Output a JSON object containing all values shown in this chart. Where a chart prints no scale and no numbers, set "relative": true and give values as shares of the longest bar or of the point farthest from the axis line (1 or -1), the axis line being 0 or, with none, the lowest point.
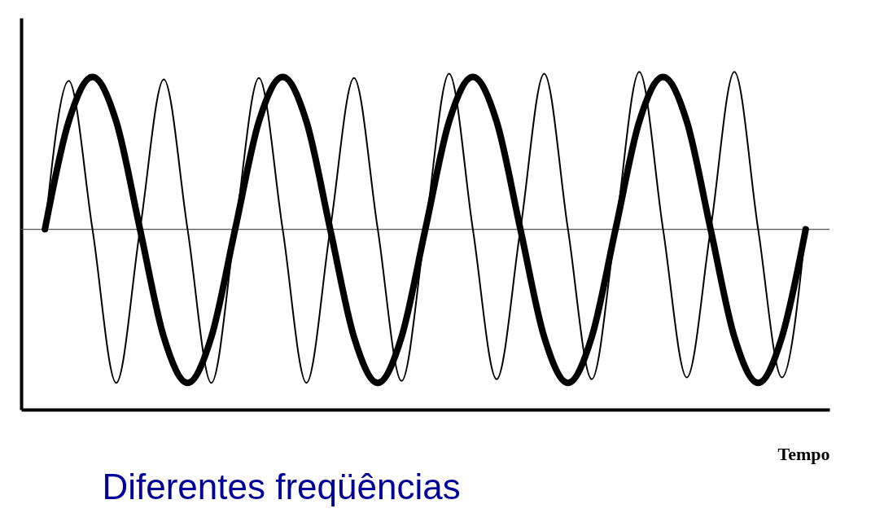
{
  "chart_data": {
    "type": "line",
    "relative": true,
    "title": "Diferentes freqüências",
    "xlabel": "Tempo",
    "legend": false,
    "grid": false,
    "marker": "none",
    "line_style": "solid",
    "categories": [
      null,
      null,
      null,
      null,
      null,
      null,
      null,
      null,
      null,
      null,
      null,
      null,
      null,
      null,
      null,
      null,
      null,
      null,
      null,
      null,
      null,
      null,
      null,
      null,
      null,
      null,
      null,
      null,
      null,
      null,
      null,
      null,
      null
    ],
    "series": [
      {
        "color": "#000000",
        "values": [
          0.534,
          0.853,
          0.985,
          0.853,
          0.534,
          0.215,
          0.079,
          0.215,
          0.534,
          0.853,
          0.985,
          0.853,
          0.534,
          0.215,
          0.079,
          0.215,
          0.534,
          0.853,
          0.985,
          0.853,
          0.534,
          0.215,
          0.079,
          0.215,
          0.534,
          0.853,
          0.985,
          0.853,
          0.534,
          0.215,
          0.079,
          0.215,
          0.534
        ]
      },
      {
        "color": "#000000",
        "values": [
          0.534,
          0.974,
          0.534,
          0.079,
          0.534,
          0.978,
          0.534,
          0.079,
          0.534,
          0.982,
          0.534,
          0.079,
          0.534,
          0.982,
          0.534,
          0.085,
          0.534,
          0.995,
          0.534,
          0.09,
          0.534,
          0.995,
          0.534,
          0.09,
          0.534,
          1.0,
          0.534,
          0.095,
          0.534,
          1.0,
          0.534,
          0.095,
          0.534
        ]
      }
    ],
    "ref_lines": [
      {
        "axis": "y",
        "value": 0.534,
        "color": "#555555"
      }
    ]
  }
}
